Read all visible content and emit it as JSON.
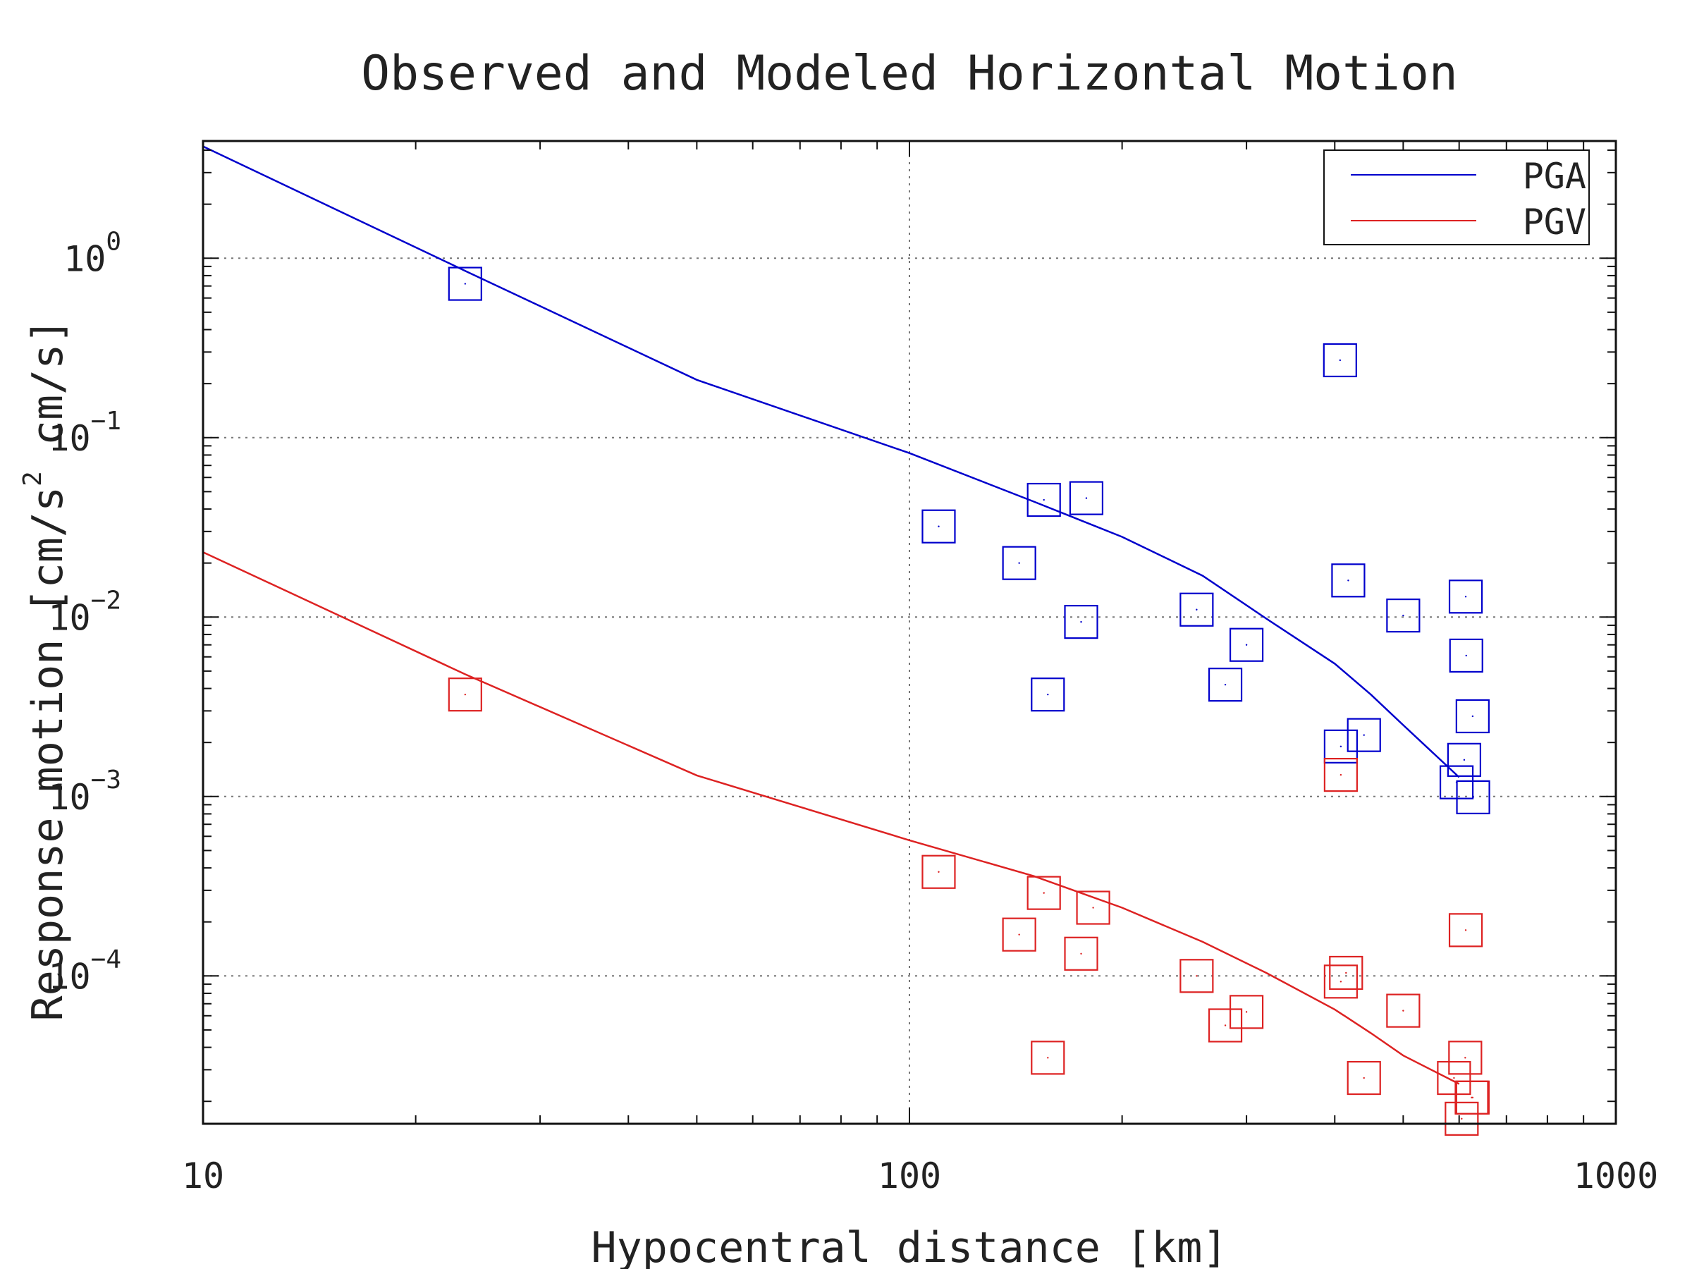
{
  "chart_data": {
    "type": "scatter",
    "title": "Observed and Modeled Horizontal Motion",
    "xlabel": "Hypocentral distance [km]",
    "ylabel_parts": [
      "Response motion  [cm/s",
      "2",
      "  cm/s]"
    ],
    "x_scale": "log",
    "y_scale": "log",
    "xlim": [
      10,
      1000
    ],
    "ylim": [
      1.5e-05,
      4.5
    ],
    "x_ticks": [
      {
        "value": 10,
        "label": "10"
      },
      {
        "value": 100,
        "label": "100"
      },
      {
        "value": 1000,
        "label": "1000"
      }
    ],
    "y_ticks": [
      {
        "value": 1,
        "base": "10",
        "exp": "0"
      },
      {
        "value": 0.1,
        "base": "10",
        "exp": "−1"
      },
      {
        "value": 0.01,
        "base": "10",
        "exp": "−2"
      },
      {
        "value": 0.001,
        "base": "10",
        "exp": "−3"
      },
      {
        "value": 0.0001,
        "base": "10",
        "exp": "−4"
      }
    ],
    "grid": true,
    "legend_position": "top-right",
    "series": [
      {
        "name": "PGA",
        "color": "#0000cc",
        "model_line": [
          [
            10,
            4.2
          ],
          [
            23.5,
            0.85
          ],
          [
            50,
            0.21
          ],
          [
            100,
            0.082
          ],
          [
            150,
            0.044
          ],
          [
            200,
            0.028
          ],
          [
            260,
            0.017
          ],
          [
            320,
            0.0098
          ],
          [
            400,
            0.0055
          ],
          [
            450,
            0.0037
          ],
          [
            500,
            0.0025
          ],
          [
            600,
            0.00128
          ]
        ],
        "observed": [
          [
            23.5,
            0.72
          ],
          [
            110,
            0.032
          ],
          [
            143,
            0.02
          ],
          [
            155,
            0.045
          ],
          [
            157,
            0.0037
          ],
          [
            175,
            0.0094
          ],
          [
            178,
            0.046
          ],
          [
            255,
            0.011
          ],
          [
            280,
            0.0042
          ],
          [
            300,
            0.007
          ],
          [
            407,
            0.27
          ],
          [
            408,
            0.0019
          ],
          [
            418,
            0.016
          ],
          [
            440,
            0.0022
          ],
          [
            500,
            0.0102
          ],
          [
            595,
            0.0012
          ],
          [
            610,
            0.0016
          ],
          [
            613,
            0.013
          ],
          [
            614,
            0.0061
          ],
          [
            627,
            0.0028
          ],
          [
            628,
            0.00099
          ]
        ]
      },
      {
        "name": "PGV",
        "color": "#dd2222",
        "model_line": [
          [
            10,
            0.023
          ],
          [
            23.5,
            0.0048
          ],
          [
            50,
            0.00131
          ],
          [
            100,
            0.00057
          ],
          [
            150,
            0.00036
          ],
          [
            200,
            0.00024
          ],
          [
            260,
            0.000155
          ],
          [
            320,
            0.000104
          ],
          [
            400,
            6.5e-05
          ],
          [
            450,
            4.8e-05
          ],
          [
            500,
            3.6e-05
          ],
          [
            600,
            2.5e-05
          ]
        ],
        "observed": [
          [
            23.5,
            0.0037
          ],
          [
            110,
            0.00038
          ],
          [
            143,
            0.00017
          ],
          [
            155,
            0.00029
          ],
          [
            157,
            3.5e-05
          ],
          [
            175,
            0.000133
          ],
          [
            182,
            0.00024
          ],
          [
            255,
            0.0001
          ],
          [
            280,
            5.3e-05
          ],
          [
            300,
            6.3e-05
          ],
          [
            408,
            0.00132
          ],
          [
            408,
            9.3e-05
          ],
          [
            415,
            0.000104
          ],
          [
            440,
            2.7e-05
          ],
          [
            500,
            6.4e-05
          ],
          [
            590,
            2.7e-05
          ],
          [
            605,
            1.6e-05
          ],
          [
            612,
            3.5e-05
          ],
          [
            613,
            0.00018
          ],
          [
            625,
            2.1e-05
          ],
          [
            627,
            2.1e-05
          ]
        ]
      }
    ]
  }
}
